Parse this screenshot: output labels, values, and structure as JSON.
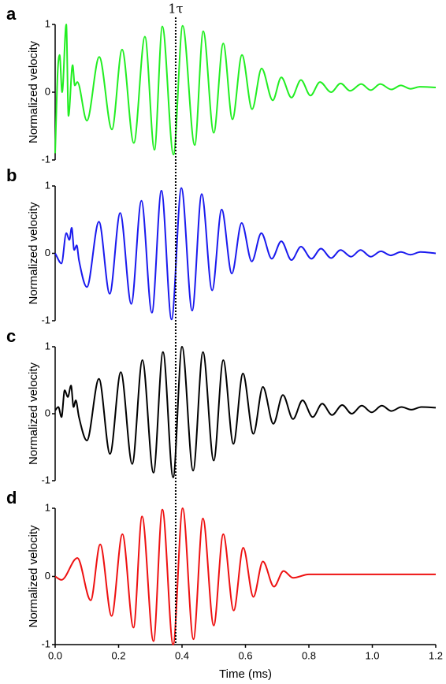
{
  "chart_data": [
    {
      "type": "line",
      "label": "a",
      "y_label": "Normalized velocity",
      "annotation": {
        "text": "1τ",
        "x": 0.38
      },
      "xlim": [
        0,
        1.2
      ],
      "ylim": [
        -1,
        1
      ],
      "yticks": [
        -1,
        0,
        1
      ],
      "x": [
        0,
        0.008,
        0.014,
        0.022,
        0.035,
        0.042,
        0.055,
        0.062,
        0.07,
        0.1,
        0.139,
        0.179,
        0.211,
        0.248,
        0.283,
        0.313,
        0.338,
        0.373,
        0.402,
        0.44,
        0.467,
        0.5,
        0.53,
        0.559,
        0.589,
        0.621,
        0.651,
        0.686,
        0.713,
        0.745,
        0.775,
        0.805,
        0.835,
        0.87,
        0.9,
        0.93,
        0.965,
        0.995,
        1.025,
        1.06,
        1.09,
        1.12,
        1.15,
        1.2
      ],
      "series": [
        {
          "color": "#22ee22",
          "values": [
            -0.9,
            0.3,
            0.55,
            0.0,
            1.0,
            -0.35,
            0.4,
            0.1,
            0.15,
            -0.42,
            0.52,
            -0.55,
            0.63,
            -0.75,
            0.82,
            -0.85,
            0.97,
            -0.92,
            0.98,
            -0.78,
            0.9,
            -0.6,
            0.72,
            -0.4,
            0.55,
            -0.25,
            0.35,
            -0.12,
            0.22,
            -0.08,
            0.18,
            -0.05,
            0.15,
            0.0,
            0.13,
            0.02,
            0.12,
            0.03,
            0.12,
            0.04,
            0.1,
            0.05,
            0.08,
            0.07
          ]
        }
      ]
    },
    {
      "type": "line",
      "label": "b",
      "y_label": "Normalized velocity",
      "xlim": [
        0,
        1.2
      ],
      "ylim": [
        -1,
        1
      ],
      "yticks": [
        -1,
        0,
        1
      ],
      "x": [
        0,
        0.02,
        0.035,
        0.045,
        0.052,
        0.06,
        0.068,
        0.075,
        0.1,
        0.138,
        0.172,
        0.205,
        0.24,
        0.272,
        0.305,
        0.335,
        0.367,
        0.398,
        0.432,
        0.462,
        0.495,
        0.525,
        0.557,
        0.588,
        0.62,
        0.65,
        0.683,
        0.713,
        0.745,
        0.775,
        0.808,
        0.838,
        0.87,
        0.9,
        0.933,
        0.963,
        0.995,
        1.027,
        1.058,
        1.09,
        1.12,
        1.152,
        1.2
      ],
      "series": [
        {
          "color": "#1a1aee",
          "values": [
            0,
            -0.15,
            0.3,
            0.2,
            0.38,
            0.05,
            0.12,
            -0.1,
            -0.5,
            0.47,
            -0.6,
            0.6,
            -0.75,
            0.78,
            -0.88,
            0.93,
            -0.98,
            0.97,
            -0.85,
            0.88,
            -0.55,
            0.65,
            -0.3,
            0.45,
            -0.12,
            0.3,
            -0.08,
            0.18,
            -0.1,
            0.1,
            -0.08,
            0.07,
            -0.07,
            0.05,
            -0.05,
            0.05,
            -0.05,
            0.03,
            -0.03,
            0.02,
            -0.02,
            0.02,
            0.0
          ]
        }
      ]
    },
    {
      "type": "line",
      "label": "c",
      "y_label": "Normalized velocity",
      "xlim": [
        0,
        1.2
      ],
      "ylim": [
        -1,
        1
      ],
      "yticks": [
        -1,
        0,
        1
      ],
      "x": [
        0,
        0.01,
        0.02,
        0.03,
        0.04,
        0.05,
        0.058,
        0.065,
        0.075,
        0.1,
        0.138,
        0.173,
        0.207,
        0.243,
        0.275,
        0.31,
        0.34,
        0.372,
        0.4,
        0.435,
        0.466,
        0.5,
        0.53,
        0.562,
        0.592,
        0.625,
        0.655,
        0.688,
        0.718,
        0.75,
        0.78,
        0.812,
        0.842,
        0.873,
        0.905,
        0.935,
        0.967,
        0.998,
        1.03,
        1.06,
        1.092,
        1.123,
        1.155,
        1.2
      ],
      "series": [
        {
          "color": "#000000",
          "values": [
            0.05,
            0.1,
            -0.05,
            0.35,
            0.25,
            0.42,
            0.1,
            0.2,
            -0.05,
            -0.4,
            0.52,
            -0.6,
            0.62,
            -0.75,
            0.8,
            -0.88,
            0.92,
            -0.95,
            1.0,
            -0.85,
            0.92,
            -0.7,
            0.8,
            -0.45,
            0.6,
            -0.3,
            0.4,
            -0.15,
            0.28,
            -0.08,
            0.2,
            -0.05,
            0.15,
            -0.02,
            0.13,
            0.0,
            0.12,
            0.02,
            0.12,
            0.04,
            0.1,
            0.06,
            0.1,
            0.09
          ]
        }
      ]
    },
    {
      "type": "line",
      "label": "d",
      "y_label": "Normalized velocity",
      "x_label": "Time (ms)",
      "xlim": [
        0,
        1.2
      ],
      "ylim": [
        -1,
        1
      ],
      "yticks": [
        -1,
        0,
        1
      ],
      "xticks": [
        {
          "value": 0,
          "label": "0.0"
        },
        {
          "value": 0.2,
          "label": "0.2"
        },
        {
          "value": 0.4,
          "label": "0.4"
        },
        {
          "value": 0.6,
          "label": "0.6"
        },
        {
          "value": 0.8,
          "label": "0.8"
        },
        {
          "value": 1,
          "label": "1.0"
        },
        {
          "value": 1.2,
          "label": "1.2"
        }
      ],
      "x": [
        0,
        0.02,
        0.07,
        0.112,
        0.142,
        0.178,
        0.212,
        0.247,
        0.274,
        0.31,
        0.338,
        0.372,
        0.402,
        0.436,
        0.466,
        0.5,
        0.53,
        0.563,
        0.593,
        0.625,
        0.655,
        0.69,
        0.72,
        0.75,
        0.8,
        1.2
      ],
      "series": [
        {
          "color": "#ee1111",
          "values": [
            0,
            -0.05,
            0.27,
            -0.35,
            0.47,
            -0.58,
            0.62,
            -0.75,
            0.88,
            -0.95,
            0.98,
            -1.0,
            1.0,
            -0.92,
            0.85,
            -0.72,
            0.62,
            -0.5,
            0.42,
            -0.3,
            0.22,
            -0.15,
            0.08,
            -0.02,
            0.03,
            0.03
          ]
        }
      ]
    }
  ]
}
